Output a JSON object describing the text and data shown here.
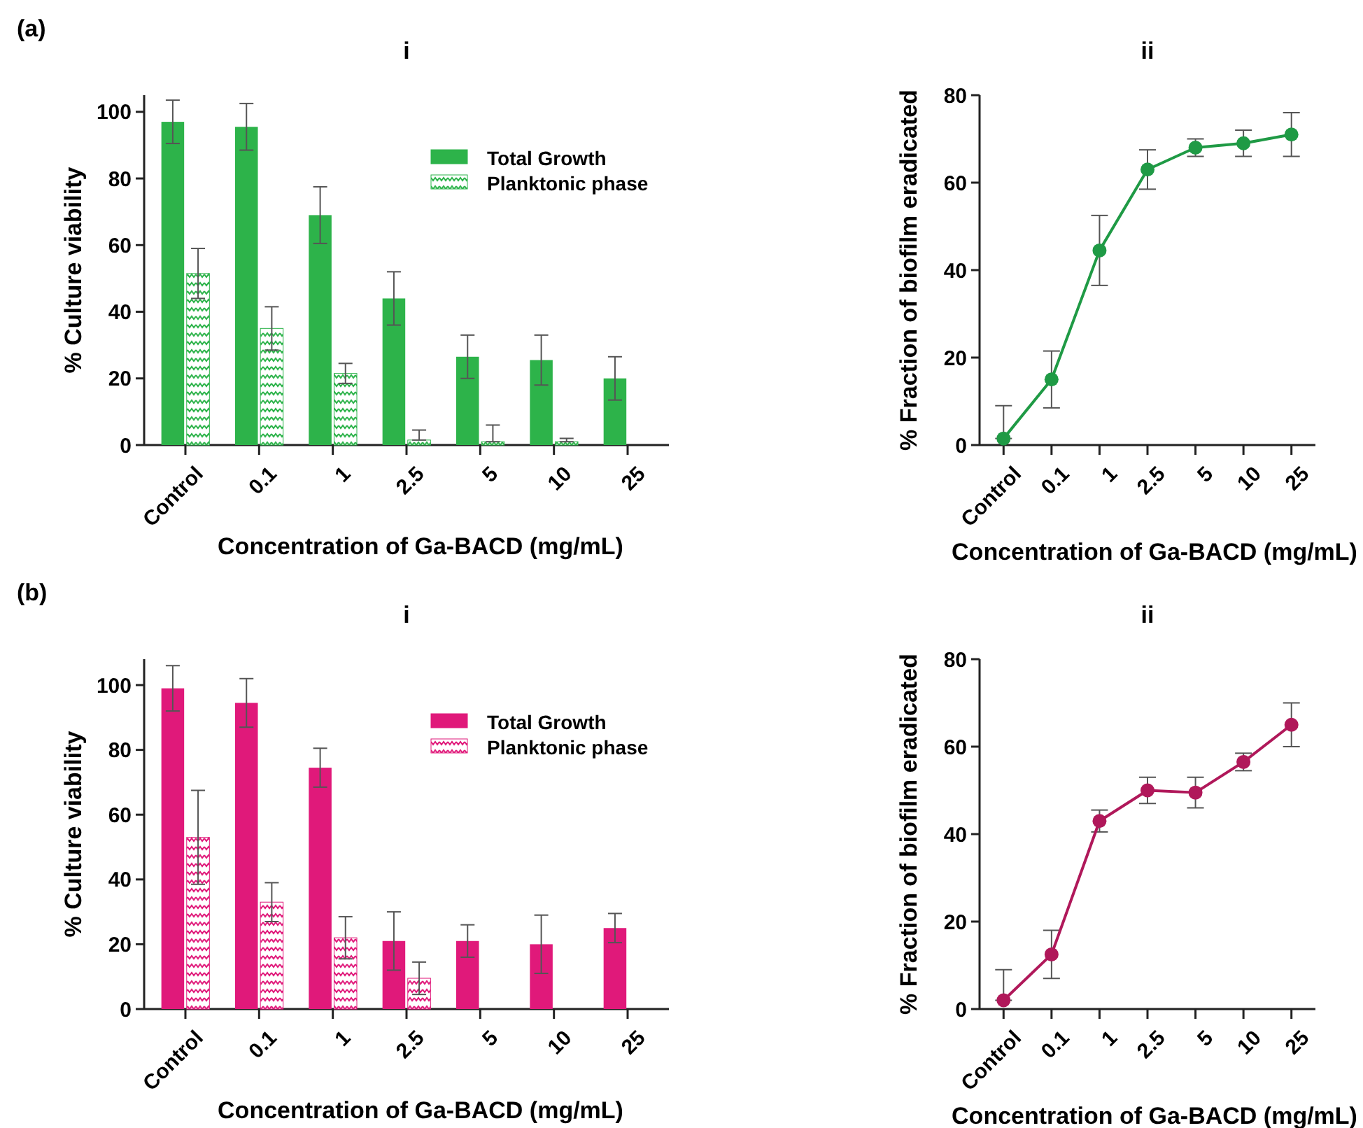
{
  "chart_data": [
    {
      "type": "bar",
      "title": "i",
      "annotations": [
        "(a)"
      ],
      "xlabel": "Concentration of Ga-BACD (mg/mL)",
      "ylabel": "% Culture viability",
      "categories": [
        "Control",
        "0.1",
        "1",
        "2.5",
        "5",
        "10",
        "25"
      ],
      "ylim": [
        0,
        105
      ],
      "yticks": [
        0,
        20,
        40,
        60,
        80,
        100
      ],
      "legend": "top right",
      "series": [
        {
          "name": "Total Growth",
          "color": "#2db34a",
          "values": [
            97,
            95.5,
            69,
            44,
            26.5,
            25.5,
            20
          ],
          "errors": [
            6.5,
            7,
            8.5,
            8,
            6.5,
            7.5,
            6.5
          ]
        },
        {
          "name": "Planktonic phase",
          "color": "#2db34a",
          "values": [
            51.5,
            35,
            21.5,
            1.5,
            1,
            1,
            null
          ],
          "errors": [
            7.5,
            6.5,
            3,
            [
              1.5,
              4.5
            ],
            [
              1,
              6
            ],
            [
              1,
              2
            ],
            null
          ]
        }
      ]
    },
    {
      "type": "line",
      "title": "ii",
      "xlabel": "Concentration of Ga-BACD (mg/mL)",
      "ylabel": "% Fraction of biofilm eradicated",
      "categories": [
        "Control",
        "0.1",
        "1",
        "2.5",
        "5",
        "10",
        "25"
      ],
      "ylim": [
        0,
        80
      ],
      "yticks": [
        0,
        20,
        40,
        60,
        80
      ],
      "marker": "circle",
      "series": [
        {
          "color": "#1f9a45",
          "values": [
            1.5,
            15,
            44.5,
            63,
            68,
            69,
            71
          ],
          "errors": [
            [
              1.5,
              9
            ],
            6.5,
            8,
            4.5,
            2,
            3,
            5
          ]
        }
      ]
    },
    {
      "type": "bar",
      "title": "i",
      "annotations": [
        "(b)"
      ],
      "xlabel": "Concentration of Ga-BACD (mg/mL)",
      "ylabel": "% Culture viability",
      "categories": [
        "Control",
        "0.1",
        "1",
        "2.5",
        "5",
        "10",
        "25"
      ],
      "ylim": [
        0,
        108
      ],
      "yticks": [
        0,
        20,
        40,
        60,
        80,
        100
      ],
      "legend": "top right",
      "series": [
        {
          "name": "Total Growth",
          "color": "#e0197a",
          "values": [
            99,
            94.5,
            74.5,
            21,
            21,
            20,
            25
          ],
          "errors": [
            7,
            7.5,
            6,
            9,
            5,
            9,
            4.5
          ]
        },
        {
          "name": "Planktonic phase",
          "color": "#e0197a",
          "values": [
            53,
            33,
            22,
            9.5,
            null,
            null,
            null
          ],
          "errors": [
            14.5,
            6,
            6.5,
            5,
            null,
            null,
            null
          ]
        }
      ]
    },
    {
      "type": "line",
      "title": "ii",
      "xlabel": "Concentration of Ga-BACD (mg/mL)",
      "ylabel": "% Fraction of biofilm eradicated",
      "categories": [
        "Control",
        "0.1",
        "1",
        "2.5",
        "5",
        "10",
        "25"
      ],
      "ylim": [
        0,
        80
      ],
      "yticks": [
        0,
        20,
        40,
        60,
        80
      ],
      "marker": "circle",
      "series": [
        {
          "color": "#b0185a",
          "values": [
            2,
            12.5,
            43,
            50,
            49.5,
            56.5,
            65
          ],
          "errors": [
            [
              2,
              9
            ],
            5.5,
            2.5,
            3,
            3.5,
            2,
            5
          ]
        }
      ]
    }
  ]
}
